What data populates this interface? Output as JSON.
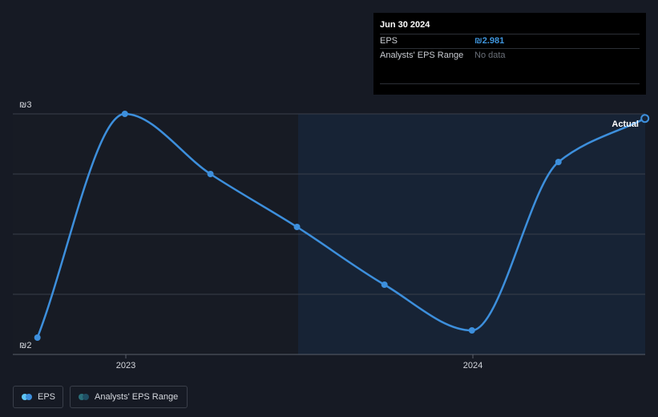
{
  "chart_data": {
    "type": "line",
    "y_ticks": [
      "₪3",
      "₪2"
    ],
    "ylim": [
      2,
      3
    ],
    "x_ticks": [
      "2023",
      "2024"
    ],
    "series": [
      {
        "name": "EPS",
        "color": "#3d8fdc",
        "points": [
          {
            "x": "2022-09-30",
            "y": 2.07
          },
          {
            "x": "2022-12-31",
            "y": 3.0
          },
          {
            "x": "2023-03-31",
            "y": 2.75
          },
          {
            "x": "2023-06-30",
            "y": 2.53
          },
          {
            "x": "2023-09-30",
            "y": 2.29
          },
          {
            "x": "2023-12-31",
            "y": 2.1
          },
          {
            "x": "2024-03-31",
            "y": 2.8
          },
          {
            "x": "2024-06-30",
            "y": 2.981
          }
        ]
      }
    ],
    "actual_label": "Actual",
    "grid": true
  },
  "tooltip": {
    "date": "Jun 30 2024",
    "eps_label": "EPS",
    "eps_value": "₪2.981",
    "range_label": "Analysts' EPS Range",
    "range_value": "No data"
  },
  "legend": {
    "eps_label": "EPS",
    "range_label": "Analysts' EPS Range",
    "eps_colors": [
      "#5fc6f5",
      "#3d8fdc"
    ],
    "range_colors": [
      "#2a6f7a",
      "#1f4e63"
    ]
  }
}
